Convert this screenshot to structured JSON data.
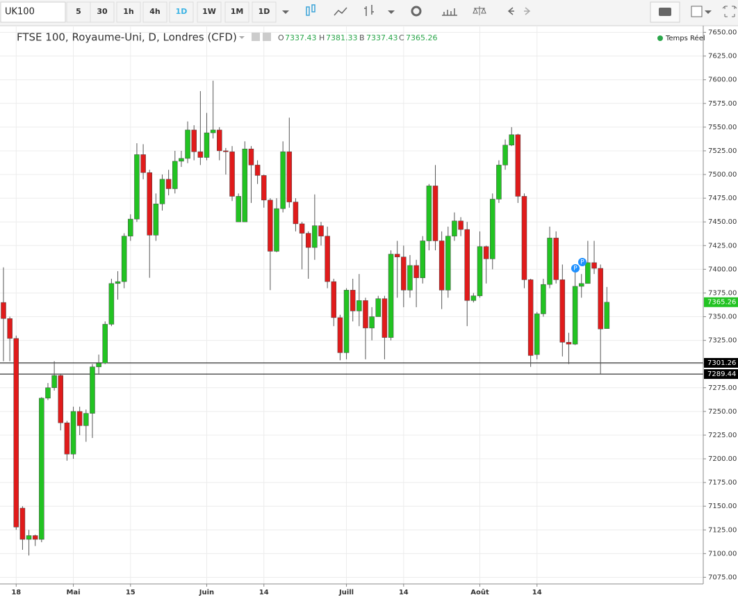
{
  "toolbar": {
    "symbol": "UK100",
    "intervals": [
      "5",
      "30",
      "1h",
      "4h",
      "1D",
      "1W",
      "1M",
      "1D"
    ]
  },
  "legend": {
    "title": "FTSE 100, Royaume-Uni, D, Londres (CFD)",
    "fields": [
      {
        "label": "O",
        "value": 7337.43
      },
      {
        "label": "H",
        "value": 7381.33
      },
      {
        "label": "B",
        "value": 7337.43
      },
      {
        "label": "C",
        "value": 7365.26
      }
    ],
    "status": "Temps Réel"
  },
  "chart_data": {
    "type": "candlestick",
    "up_color": "#22c322",
    "down_color": "#e01b1b",
    "grid": true,
    "categories": [
      null,
      null,
      "18",
      null,
      null,
      null,
      null,
      null,
      null,
      null,
      null,
      "Mai",
      null,
      null,
      null,
      null,
      null,
      null,
      null,
      null,
      "15",
      null,
      null,
      null,
      null,
      null,
      null,
      null,
      null,
      null,
      null,
      null,
      "Juin",
      null,
      null,
      null,
      null,
      null,
      null,
      null,
      null,
      "14",
      null,
      null,
      null,
      null,
      null,
      null,
      null,
      null,
      null,
      null,
      null,
      null,
      "Juill",
      null,
      null,
      null,
      null,
      null,
      null,
      null,
      null,
      "14",
      null,
      null,
      null,
      null,
      null,
      null,
      null,
      null,
      null,
      null,
      null,
      "Août",
      null,
      null,
      null,
      null,
      null,
      null,
      null,
      null,
      "14",
      null,
      null,
      null,
      null,
      null,
      null,
      null,
      null,
      null,
      null,
      null
    ],
    "open": [
      7365,
      7348,
      7327,
      7148,
      7115,
      7119,
      7115,
      7264,
      7275,
      7288,
      7238,
      7205,
      7250,
      7235,
      7248,
      7297,
      7301,
      7342,
      7385,
      7387,
      7435,
      7453,
      7521,
      7502,
      7436,
      7469,
      7495,
      7485,
      7514,
      7517,
      7547,
      7524,
      7518,
      7544,
      7547,
      7525,
      7524,
      7450,
      7450,
      7527,
      7510,
      7499,
      7473,
      7419,
      7464,
      7524,
      7471,
      7448,
      7438,
      7423,
      7446,
      7435,
      7387,
      7349,
      7312,
      7378,
      7356,
      7367,
      7338,
      7350,
      7369,
      7328,
      7416,
      7413,
      7378,
      7404,
      7391,
      7430,
      7488,
      7430,
      7378,
      7435,
      7451,
      7442,
      7367,
      7372,
      7424,
      7411,
      7474,
      7510,
      7531,
      7542,
      7477,
      7389,
      7310,
      7353,
      7384,
      7433,
      7389,
      7323,
      7321,
      7382,
      7385,
      7407,
      7401,
      7337.43
    ],
    "high": [
      7402,
      7350,
      7330,
      7150,
      7125,
      7120,
      7265,
      7280,
      7303,
      7290,
      7240,
      7255,
      7255,
      7252,
      7300,
      7310,
      7345,
      7390,
      7398,
      7438,
      7458,
      7533,
      7532,
      7505,
      7480,
      7500,
      7505,
      7525,
      7525,
      7556,
      7552,
      7588,
      7565,
      7599,
      7550,
      7528,
      7530,
      7480,
      7535,
      7530,
      7515,
      7500,
      7475,
      7475,
      7535,
      7560,
      7475,
      7450,
      7440,
      7479,
      7450,
      7445,
      7390,
      7352,
      7380,
      7390,
      7395,
      7370,
      7360,
      7372,
      7372,
      7420,
      7430,
      7425,
      7415,
      7410,
      7435,
      7490,
      7510,
      7440,
      7445,
      7460,
      7455,
      7450,
      7375,
      7440,
      7425,
      7480,
      7515,
      7537,
      7550,
      7543,
      7480,
      7390,
      7355,
      7390,
      7445,
      7440,
      7405,
      7333,
      7398,
      7395,
      7430,
      7430,
      7405,
      7381.33
    ],
    "low": [
      7303,
      7303,
      7125,
      7104,
      7098,
      7108,
      7112,
      7262,
      7272,
      7230,
      7198,
      7200,
      7225,
      7218,
      7222,
      7290,
      7300,
      7340,
      7368,
      7380,
      7430,
      7450,
      7495,
      7391,
      7430,
      7462,
      7478,
      7480,
      7508,
      7512,
      7515,
      7510,
      7515,
      7538,
      7515,
      7500,
      7472,
      7450,
      7450,
      7470,
      7490,
      7465,
      7378,
      7418,
      7460,
      7465,
      7440,
      7400,
      7390,
      7410,
      7425,
      7380,
      7340,
      7304,
      7305,
      7345,
      7340,
      7305,
      7325,
      7350,
      7305,
      7325,
      7370,
      7360,
      7370,
      7360,
      7385,
      7420,
      7420,
      7358,
      7370,
      7430,
      7435,
      7340,
      7365,
      7370,
      7385,
      7400,
      7470,
      7505,
      7530,
      7470,
      7380,
      7297,
      7305,
      7350,
      7380,
      7385,
      7308,
      7300,
      7320,
      7370,
      7385,
      7395,
      7289.44,
      7337.43
    ],
    "close": [
      7348,
      7327,
      7128,
      7115,
      7119,
      7115,
      7264,
      7275,
      7288,
      7238,
      7205,
      7250,
      7235,
      7248,
      7297,
      7301,
      7342,
      7385,
      7387,
      7435,
      7453,
      7521,
      7502,
      7436,
      7469,
      7495,
      7485,
      7514,
      7517,
      7547,
      7524,
      7518,
      7544,
      7547,
      7525,
      7524,
      7477,
      7477,
      7527,
      7510,
      7499,
      7473,
      7419,
      7464,
      7524,
      7471,
      7448,
      7438,
      7423,
      7446,
      7435,
      7387,
      7349,
      7312,
      7378,
      7356,
      7367,
      7338,
      7350,
      7369,
      7328,
      7416,
      7413,
      7378,
      7404,
      7391,
      7430,
      7488,
      7430,
      7378,
      7435,
      7451,
      7442,
      7367,
      7372,
      7424,
      7411,
      7474,
      7510,
      7531,
      7542,
      7477,
      7389,
      7309,
      7353,
      7384,
      7433,
      7389,
      7323,
      7321,
      7382,
      7385,
      7407,
      7401,
      7337,
      7365.26
    ],
    "ylim": [
      7068,
      7657
    ],
    "yticks": [
      {
        "value": 7075,
        "label": "7075.00"
      },
      {
        "value": 7100,
        "label": "7100.00"
      },
      {
        "value": 7125,
        "label": "7125.00"
      },
      {
        "value": 7150,
        "label": "7150.00"
      },
      {
        "value": 7175,
        "label": "7175.00"
      },
      {
        "value": 7200,
        "label": "7200.00"
      },
      {
        "value": 7225,
        "label": "7225.00"
      },
      {
        "value": 7250,
        "label": "7250.00"
      },
      {
        "value": 7275,
        "label": "7275.00"
      },
      {
        "value": 7300,
        "label": "7300.00"
      },
      {
        "value": 7325,
        "label": "7325.00"
      },
      {
        "value": 7350,
        "label": "7350.00"
      },
      {
        "value": 7375,
        "label": "7375.00"
      },
      {
        "value": 7400,
        "label": "7400.00"
      },
      {
        "value": 7425,
        "label": "7425.00"
      },
      {
        "value": 7450,
        "label": "7450.00"
      },
      {
        "value": 7475,
        "label": "7475.00"
      },
      {
        "value": 7500,
        "label": "7500.00"
      },
      {
        "value": 7525,
        "label": "7525.00"
      },
      {
        "value": 7550,
        "label": "7550.00"
      },
      {
        "value": 7575,
        "label": "7575.00"
      },
      {
        "value": 7600,
        "label": "7600.00"
      },
      {
        "value": 7625,
        "label": "7625.00"
      },
      {
        "value": 7650,
        "label": "7650.00"
      }
    ],
    "price_lines": [
      7301.26,
      7289.44
    ],
    "last_price": 7365.26,
    "markers": [
      "P",
      "P"
    ]
  }
}
